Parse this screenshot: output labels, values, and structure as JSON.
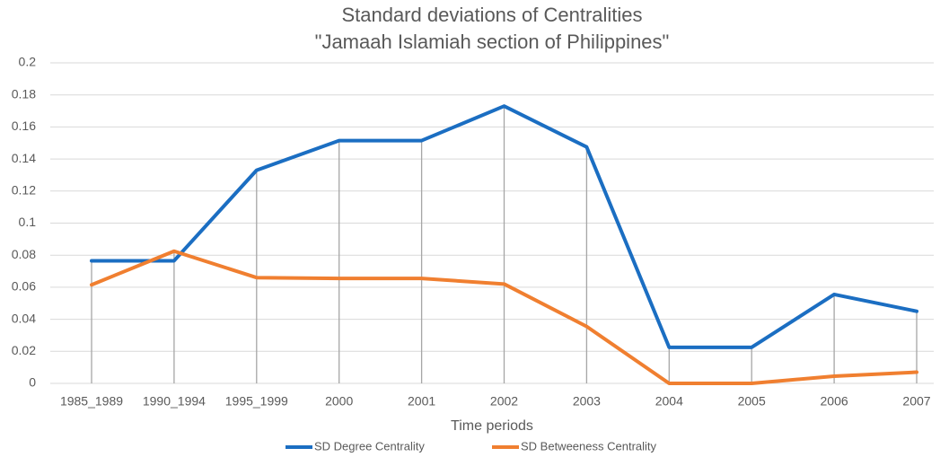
{
  "chart_data": {
    "type": "line",
    "title": "Standard deviations of Centralities",
    "subtitle": "\"Jamaah Islamiah section of Philippines\"",
    "x_label": "Time periods",
    "categories": [
      "1985_1989",
      "1990_1994",
      "1995_1999",
      "2000",
      "2001",
      "2002",
      "2003",
      "2004",
      "2005",
      "2006",
      "2007"
    ],
    "series": [
      {
        "name": "SD Degree Centrality",
        "color": "#1b6ec2",
        "values": [
          0.0765,
          0.0765,
          0.133,
          0.1515,
          0.1515,
          0.173,
          0.1475,
          0.0225,
          0.0225,
          0.0555,
          0.045
        ]
      },
      {
        "name": "SD Betweeness Centrality",
        "color": "#f07f30",
        "values": [
          0.0615,
          0.0825,
          0.066,
          0.0655,
          0.0655,
          0.062,
          0.0355,
          0,
          0,
          0.0045,
          0.007
        ]
      }
    ],
    "ylim": [
      0,
      0.2
    ],
    "yticks": [
      0,
      0.02,
      0.04,
      0.06,
      0.08,
      0.1,
      0.12,
      0.14,
      0.16,
      0.18,
      0.2
    ],
    "grid": true,
    "drop_lines": true,
    "legend": "bottom"
  }
}
